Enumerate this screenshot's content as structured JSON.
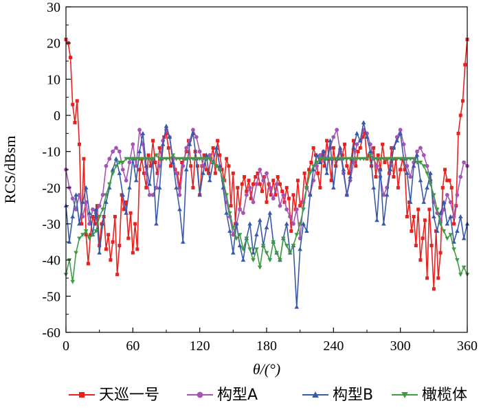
{
  "chart_data": {
    "type": "line",
    "xlabel": "θ/(°)",
    "ylabel": "RCS/dBsm",
    "xlim": [
      0,
      360
    ],
    "ylim": [
      -60,
      30
    ],
    "xticks": [
      0,
      60,
      120,
      180,
      240,
      300,
      360
    ],
    "yticks": [
      -60,
      -50,
      -40,
      -30,
      -20,
      -10,
      0,
      10,
      20,
      30
    ],
    "grid": false,
    "legend_position": "bottom",
    "series": [
      {
        "name": "天巡一号",
        "color": "#e8201e",
        "marker": "square",
        "x": [
          0,
          2,
          4,
          6,
          8,
          10,
          12,
          14,
          16,
          18,
          20,
          22,
          24,
          26,
          28,
          30,
          32,
          34,
          36,
          38,
          40,
          42,
          44,
          46,
          48,
          50,
          52,
          54,
          56,
          58,
          60,
          62,
          64,
          66,
          68,
          70,
          72,
          74,
          76,
          78,
          80,
          82,
          84,
          86,
          88,
          90,
          92,
          94,
          96,
          98,
          100,
          102,
          104,
          106,
          108,
          110,
          112,
          114,
          116,
          118,
          120,
          122,
          124,
          126,
          128,
          130,
          132,
          134,
          136,
          138,
          140,
          142,
          144,
          146,
          148,
          150,
          152,
          154,
          156,
          158,
          160,
          162,
          164,
          166,
          168,
          170,
          172,
          174,
          176,
          178,
          180,
          182,
          184,
          186,
          188,
          190,
          192,
          194,
          196,
          198,
          200,
          202,
          204,
          206,
          208,
          210,
          212,
          214,
          216,
          218,
          220,
          222,
          224,
          226,
          228,
          230,
          232,
          234,
          236,
          238,
          240,
          242,
          244,
          246,
          248,
          250,
          252,
          254,
          256,
          258,
          260,
          262,
          264,
          266,
          268,
          270,
          272,
          274,
          276,
          278,
          280,
          282,
          284,
          286,
          288,
          290,
          292,
          294,
          296,
          298,
          300,
          302,
          304,
          306,
          308,
          310,
          312,
          314,
          316,
          318,
          320,
          322,
          324,
          326,
          328,
          330,
          332,
          334,
          336,
          338,
          340,
          342,
          344,
          346,
          348,
          350,
          352,
          354,
          356,
          358,
          360
        ],
        "y": [
          21,
          20,
          16,
          3,
          -2,
          4,
          -8,
          -30,
          -12,
          -33,
          -41,
          -33,
          -28,
          -30,
          -25,
          -36,
          -30,
          -28,
          -37,
          -33,
          -40,
          -35,
          -28,
          -44,
          -36,
          -22,
          -26,
          -24,
          -34,
          -27,
          -38,
          -30,
          -37,
          -15,
          -12,
          -16,
          -20,
          -11,
          -14,
          -7,
          -13,
          -16,
          -9,
          -12,
          -6,
          -5,
          -9,
          -14,
          -12,
          -15,
          -16,
          -20,
          -13,
          -12,
          -10,
          -7,
          -14,
          -20,
          -10,
          -14,
          -22,
          -14,
          -11,
          -15,
          -16,
          -12,
          -9,
          -16,
          -7,
          -11,
          -15,
          -18,
          -12,
          -14,
          -25,
          -16,
          -30,
          -20,
          -26,
          -19,
          -17,
          -21,
          -18,
          -23,
          -19,
          -17,
          -16,
          -19,
          -21,
          -17,
          -24,
          -19,
          -22,
          -18,
          -22,
          -17,
          -19,
          -21,
          -24,
          -20,
          -23,
          -32,
          -22,
          -26,
          -18,
          -25,
          -24,
          -16,
          -20,
          -15,
          -13,
          -9,
          -11,
          -16,
          -20,
          -11,
          -14,
          -7,
          -12,
          -18,
          -9,
          -14,
          -12,
          -10,
          -11,
          -8,
          -14,
          -16,
          -12,
          -7,
          -14,
          -10,
          -9,
          -6,
          -5,
          -12,
          -11,
          -14,
          -9,
          -17,
          -11,
          -15,
          -8,
          -13,
          -12,
          -16,
          -9,
          -17,
          -12,
          -20,
          -15,
          -12,
          -15,
          -28,
          -24,
          -32,
          -28,
          -36,
          -26,
          -40,
          -34,
          -29,
          -45,
          -26,
          -36,
          -48,
          -32,
          -45,
          -38,
          -20,
          -15,
          -18,
          -18,
          -20,
          -30,
          -25,
          -5,
          0,
          4,
          14,
          21
        ]
      },
      {
        "name": "构型A",
        "color": "#a455b4",
        "marker": "circle",
        "x": [
          0,
          3,
          6,
          9,
          12,
          15,
          18,
          21,
          24,
          27,
          30,
          33,
          36,
          39,
          42,
          45,
          48,
          51,
          54,
          57,
          60,
          63,
          66,
          69,
          72,
          75,
          78,
          81,
          84,
          87,
          90,
          93,
          96,
          99,
          102,
          105,
          108,
          111,
          114,
          117,
          120,
          123,
          126,
          129,
          132,
          135,
          138,
          141,
          144,
          147,
          150,
          153,
          156,
          159,
          162,
          165,
          168,
          171,
          174,
          177,
          180,
          183,
          186,
          189,
          192,
          195,
          198,
          201,
          204,
          207,
          210,
          213,
          216,
          219,
          222,
          225,
          228,
          231,
          234,
          237,
          240,
          243,
          246,
          249,
          252,
          255,
          258,
          261,
          264,
          267,
          270,
          273,
          276,
          279,
          282,
          285,
          288,
          291,
          294,
          297,
          300,
          303,
          306,
          309,
          312,
          315,
          318,
          321,
          324,
          327,
          330,
          333,
          336,
          339,
          342,
          345,
          348,
          351,
          354,
          357,
          360
        ],
        "y": [
          -15,
          -20,
          -23,
          -26,
          -22,
          -28,
          -24,
          -30,
          -26,
          -27,
          -25,
          -22,
          -14,
          -12,
          -10,
          -9,
          -10,
          -15,
          -18,
          -13,
          -8,
          -14,
          -4,
          -8,
          -16,
          -22,
          -22,
          -20,
          -14,
          -7,
          -4,
          -6,
          -12,
          -16,
          -22,
          -14,
          -9,
          -7,
          -4,
          -6,
          -10,
          -14,
          -12,
          -11,
          -13,
          -14,
          -15,
          -18,
          -24,
          -28,
          -33,
          -30,
          -26,
          -27,
          -22,
          -20,
          -24,
          -19,
          -15,
          -18,
          -16,
          -20,
          -23,
          -19,
          -25,
          -22,
          -26,
          -28,
          -30,
          -26,
          -34,
          -24,
          -20,
          -22,
          -18,
          -14,
          -11,
          -10,
          -12,
          -9,
          -6,
          -4,
          -10,
          -16,
          -22,
          -18,
          -13,
          -8,
          -7,
          -4,
          -5,
          -8,
          -12,
          -14,
          -17,
          -22,
          -20,
          -14,
          -9,
          -6,
          -4,
          -8,
          -14,
          -17,
          -13,
          -10,
          -9,
          -11,
          -14,
          -18,
          -24,
          -27,
          -29,
          -26,
          -22,
          -24,
          -28,
          -22,
          -17,
          -13,
          -14
        ]
      },
      {
        "name": "构型B",
        "color": "#3659a8",
        "marker": "triangle-up",
        "x": [
          0,
          3,
          6,
          9,
          12,
          15,
          18,
          21,
          24,
          27,
          30,
          33,
          36,
          39,
          42,
          45,
          48,
          51,
          54,
          57,
          60,
          63,
          66,
          69,
          72,
          75,
          78,
          81,
          84,
          87,
          90,
          93,
          96,
          99,
          102,
          105,
          108,
          111,
          114,
          117,
          120,
          123,
          126,
          129,
          132,
          135,
          138,
          141,
          144,
          147,
          150,
          153,
          156,
          159,
          162,
          165,
          168,
          171,
          174,
          177,
          180,
          183,
          186,
          189,
          192,
          195,
          198,
          201,
          204,
          207,
          210,
          213,
          216,
          219,
          222,
          225,
          228,
          231,
          234,
          237,
          240,
          243,
          246,
          249,
          252,
          255,
          258,
          261,
          264,
          267,
          270,
          273,
          276,
          279,
          282,
          285,
          288,
          291,
          294,
          297,
          300,
          303,
          306,
          309,
          312,
          315,
          318,
          321,
          324,
          327,
          330,
          333,
          336,
          339,
          342,
          345,
          348,
          351,
          354,
          357,
          360
        ],
        "y": [
          -25,
          -35,
          -28,
          -22,
          -30,
          -24,
          -20,
          -27,
          -33,
          -26,
          -38,
          -30,
          -24,
          -20,
          -15,
          -12,
          -16,
          -22,
          -27,
          -20,
          -12,
          -18,
          -10,
          -5,
          -14,
          -19,
          -12,
          -30,
          -20,
          -8,
          -3,
          -6,
          -13,
          -20,
          -26,
          -35,
          -15,
          -8,
          -5,
          -12,
          -22,
          -16,
          -11,
          -18,
          -13,
          -9,
          -14,
          -20,
          -27,
          -32,
          -38,
          -30,
          -36,
          -40,
          -34,
          -30,
          -38,
          -33,
          -29,
          -36,
          -31,
          -27,
          -35,
          -38,
          -40,
          -34,
          -30,
          -38,
          -36,
          -53,
          -37,
          -30,
          -32,
          -22,
          -15,
          -11,
          -13,
          -10,
          -16,
          -7,
          -20,
          -12,
          -9,
          -15,
          -22,
          -17,
          -9,
          -5,
          -7,
          -2,
          -6,
          -10,
          -20,
          -29,
          -15,
          -30,
          -22,
          -15,
          -9,
          -7,
          -5,
          -12,
          -16,
          -24,
          -14,
          -11,
          -18,
          -24,
          -20,
          -16,
          -28,
          -32,
          -27,
          -24,
          -30,
          -28,
          -35,
          -32,
          -28,
          -34,
          -30
        ]
      },
      {
        "name": "橄榄体",
        "color": "#3e9b43",
        "marker": "triangle-down",
        "x": [
          0,
          3,
          6,
          9,
          12,
          15,
          18,
          21,
          24,
          27,
          30,
          33,
          36,
          39,
          42,
          45,
          48,
          51,
          54,
          57,
          60,
          63,
          66,
          69,
          72,
          75,
          78,
          81,
          84,
          87,
          90,
          93,
          96,
          99,
          102,
          105,
          108,
          111,
          114,
          117,
          120,
          123,
          126,
          129,
          132,
          135,
          138,
          141,
          144,
          147,
          150,
          153,
          156,
          159,
          162,
          165,
          168,
          171,
          174,
          177,
          180,
          183,
          186,
          189,
          192,
          195,
          198,
          201,
          204,
          207,
          210,
          213,
          216,
          219,
          222,
          225,
          228,
          231,
          234,
          237,
          240,
          243,
          246,
          249,
          252,
          255,
          258,
          261,
          264,
          267,
          270,
          273,
          276,
          279,
          282,
          285,
          288,
          291,
          294,
          297,
          300,
          303,
          306,
          309,
          312,
          315,
          318,
          321,
          324,
          327,
          330,
          333,
          336,
          339,
          342,
          345,
          348,
          351,
          354,
          357,
          360
        ],
        "y": [
          -44,
          -40,
          -46,
          -38,
          -34,
          -33,
          -32,
          -34,
          -33,
          -32,
          -28,
          -26,
          -22,
          -19,
          -16,
          -14,
          -13,
          -13,
          -12,
          -12,
          -12,
          -12,
          -12,
          -12,
          -12,
          -12,
          -12,
          -11,
          -12,
          -12,
          -12,
          -12,
          -11,
          -12,
          -12,
          -12,
          -12,
          -12,
          -12,
          -12,
          -12,
          -12,
          -12,
          -12,
          -13,
          -14,
          -15,
          -18,
          -22,
          -27,
          -31,
          -34,
          -33,
          -37,
          -34,
          -37,
          -40,
          -37,
          -42,
          -36,
          -38,
          -40,
          -35,
          -38,
          -40,
          -34,
          -36,
          -38,
          -36,
          -33,
          -30,
          -26,
          -20,
          -16,
          -14,
          -13,
          -12,
          -12,
          -12,
          -12,
          -12,
          -12,
          -12,
          -12,
          -12,
          -12,
          -12,
          -12,
          -12,
          -12,
          -12,
          -11,
          -12,
          -12,
          -12,
          -12,
          -12,
          -12,
          -12,
          -12,
          -12,
          -12,
          -12,
          -12,
          -12,
          -13,
          -13,
          -14,
          -16,
          -19,
          -22,
          -26,
          -30,
          -32,
          -34,
          -33,
          -37,
          -40,
          -44,
          -42,
          -44
        ]
      }
    ]
  }
}
